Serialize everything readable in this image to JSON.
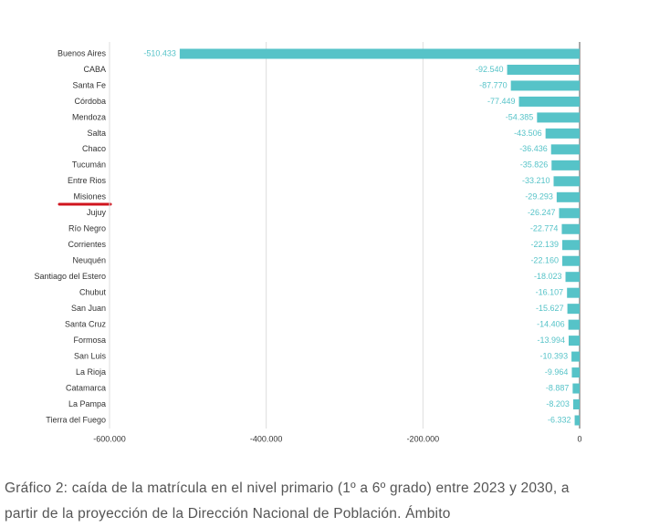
{
  "chart_data": {
    "type": "hbar",
    "categories": [
      "Buenos Aires",
      "CABA",
      "Santa Fe",
      "Córdoba",
      "Mendoza",
      "Salta",
      "Chaco",
      "Tucumán",
      "Entre Rios",
      "Misiones",
      "Jujuy",
      "Río Negro",
      "Corrientes",
      "Neuquén",
      "Santiago del Estero",
      "Chubut",
      "San Juan",
      "Santa Cruz",
      "Formosa",
      "San Luis",
      "La Rioja",
      "Catamarca",
      "La Pampa",
      "Tierra del Fuego"
    ],
    "values": [
      -510433,
      -92540,
      -87770,
      -77449,
      -54385,
      -43506,
      -36436,
      -35826,
      -33210,
      -29293,
      -26247,
      -22774,
      -22139,
      -22160,
      -18023,
      -16107,
      -15627,
      -14406,
      -13994,
      -10393,
      -9964,
      -8887,
      -8203,
      -6332
    ],
    "value_labels": [
      "-510.433",
      "-92.540",
      "-87.770",
      "-77.449",
      "-54.385",
      "-43.506",
      "-36.436",
      "-35.826",
      "-33.210",
      "-29.293",
      "-26.247",
      "-22.774",
      "-22.139",
      "-22.160",
      "-18.023",
      "-16.107",
      "-15.627",
      "-14.406",
      "-13.994",
      "-10.393",
      "-9.964",
      "-8.887",
      "-8.203",
      "-6.332"
    ],
    "color": "#56c3c8",
    "xlim": [
      -600000,
      0
    ],
    "xticks": [
      {
        "value": -600000,
        "label": "-600.000"
      },
      {
        "value": -400000,
        "label": "-400.000"
      },
      {
        "value": -200000,
        "label": "-200.000"
      },
      0
    ],
    "grid": true,
    "caption": "Gráfico 2: caída de la matrícula en el nivel primario (1º a 6º grado) entre 2023 y 2030, a partir de la proyección de la Dirección Nacional de Población. Ámbito"
  }
}
